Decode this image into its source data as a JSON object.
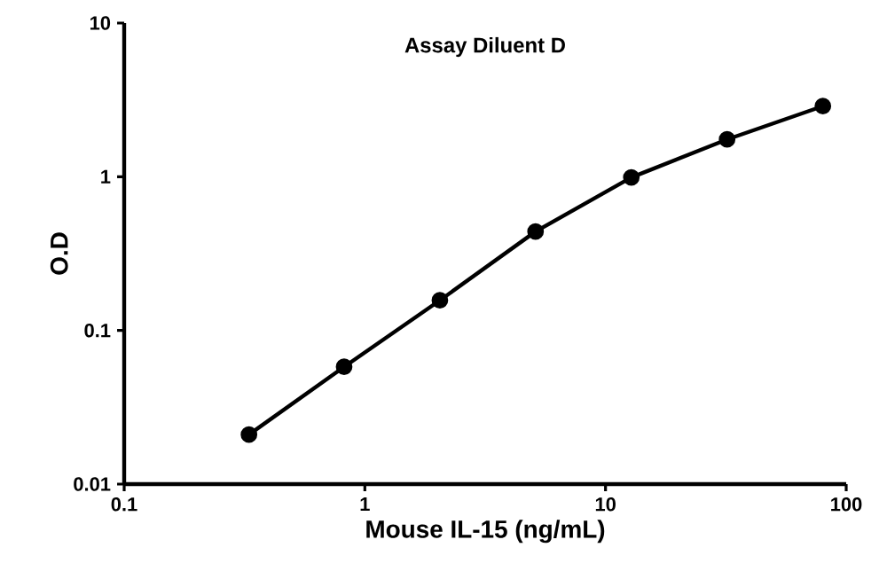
{
  "chart_data": {
    "type": "line",
    "title": "Assay Diluent D",
    "xlabel": "Mouse IL-15 (ng/mL)",
    "ylabel": "O.D",
    "x": [
      0.33,
      0.82,
      2.05,
      5.12,
      12.8,
      32,
      80
    ],
    "series": [
      {
        "color": "#000000",
        "values": [
          0.021,
          0.058,
          0.157,
          0.44,
          0.99,
          1.75,
          2.88
        ]
      }
    ],
    "log": "xy",
    "xlim": [
      0.1,
      100
    ],
    "ylim": [
      0.01,
      10
    ],
    "xticks": [
      0.1,
      1,
      10,
      100
    ],
    "yticks": [
      0.01,
      0.1,
      1,
      10
    ],
    "marker": "circle",
    "line_style": "solid",
    "grid": false
  }
}
